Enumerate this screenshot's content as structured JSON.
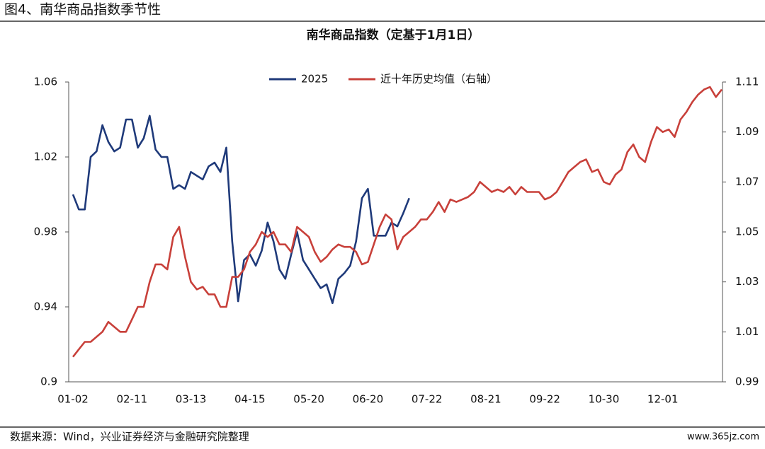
{
  "chart_data": {
    "type": "line",
    "figure_label": "图4、南华商品指数季节性",
    "title": "南华商品指数（定基于1月1日）",
    "source": "数据来源：Wind，兴业证券经济与金融研究院整理",
    "watermark": "www.365jz.com",
    "categories": [
      "01-02",
      null,
      null,
      null,
      null,
      null,
      null,
      null,
      null,
      null,
      "02-11",
      null,
      null,
      null,
      null,
      null,
      null,
      null,
      null,
      null,
      "03-13",
      null,
      null,
      null,
      null,
      null,
      null,
      null,
      null,
      null,
      "04-15",
      null,
      null,
      null,
      null,
      null,
      null,
      null,
      null,
      null,
      "05-20",
      null,
      null,
      null,
      null,
      null,
      null,
      null,
      null,
      null,
      "06-20",
      null,
      null,
      null,
      null,
      null,
      null,
      null,
      null,
      null,
      "07-22",
      null,
      null,
      null,
      null,
      null,
      null,
      null,
      null,
      null,
      "08-21",
      null,
      null,
      null,
      null,
      null,
      null,
      null,
      null,
      null,
      "09-22",
      null,
      null,
      null,
      null,
      null,
      null,
      null,
      null,
      null,
      "10-30",
      null,
      null,
      null,
      null,
      null,
      null,
      null,
      null,
      null,
      "12-01",
      null,
      null,
      null,
      null,
      null,
      null,
      null,
      null,
      null,
      null
    ],
    "series": [
      {
        "name": "2025",
        "color": "#1f3a7a",
        "values": [
          1.0,
          0.992,
          0.992,
          1.02,
          1.023,
          1.037,
          1.028,
          1.023,
          1.025,
          1.04,
          1.04,
          1.025,
          1.03,
          1.042,
          1.024,
          1.02,
          1.02,
          1.003,
          1.005,
          1.003,
          1.012,
          1.01,
          1.008,
          1.015,
          1.017,
          1.012,
          1.025,
          0.975,
          0.943,
          0.965,
          0.968,
          0.962,
          0.97,
          0.985,
          0.975,
          0.96,
          0.955,
          0.968,
          0.98,
          0.965,
          0.96,
          0.955,
          0.95,
          0.952,
          0.942,
          0.955,
          0.958,
          0.962,
          0.975,
          0.998,
          1.003,
          0.978,
          0.978,
          0.978,
          0.985,
          0.983,
          0.99,
          0.998,
          null,
          null,
          null,
          null,
          null,
          null,
          null,
          null,
          null,
          null,
          null,
          null,
          null,
          null,
          null,
          null,
          null,
          null,
          null,
          null,
          null,
          null,
          null,
          null,
          null,
          null,
          null,
          null,
          null,
          null,
          null,
          null,
          null,
          null,
          null,
          null,
          null,
          null,
          null,
          null,
          null,
          null,
          null,
          null,
          null,
          null,
          null,
          null,
          null,
          null,
          null,
          null,
          null
        ]
      },
      {
        "name": "近十年历史均值（右轴）",
        "color": "#c8403a",
        "axis": "y2",
        "values": [
          1.0,
          1.003,
          1.006,
          1.006,
          1.008,
          1.01,
          1.014,
          1.012,
          1.01,
          1.01,
          1.015,
          1.02,
          1.02,
          1.03,
          1.037,
          1.037,
          1.035,
          1.048,
          1.052,
          1.04,
          1.03,
          1.027,
          1.028,
          1.025,
          1.025,
          1.02,
          1.02,
          1.032,
          1.032,
          1.035,
          1.042,
          1.045,
          1.05,
          1.048,
          1.05,
          1.045,
          1.045,
          1.042,
          1.052,
          1.05,
          1.048,
          1.042,
          1.038,
          1.04,
          1.043,
          1.045,
          1.044,
          1.044,
          1.042,
          1.037,
          1.038,
          1.045,
          1.052,
          1.057,
          1.055,
          1.043,
          1.048,
          1.05,
          1.052,
          1.055,
          1.055,
          1.058,
          1.062,
          1.058,
          1.063,
          1.062,
          1.063,
          1.064,
          1.066,
          1.07,
          1.068,
          1.066,
          1.067,
          1.066,
          1.068,
          1.065,
          1.068,
          1.066,
          1.066,
          1.066,
          1.063,
          1.064,
          1.066,
          1.07,
          1.074,
          1.076,
          1.078,
          1.079,
          1.074,
          1.075,
          1.07,
          1.069,
          1.073,
          1.075,
          1.082,
          1.085,
          1.08,
          1.078,
          1.086,
          1.092,
          1.09,
          1.091,
          1.088,
          1.095,
          1.098,
          1.102,
          1.105,
          1.107,
          1.108,
          1.104,
          1.107
        ]
      }
    ],
    "ylim": [
      0.9,
      1.06
    ],
    "yticks": [
      0.9,
      0.94,
      0.98,
      1.02,
      1.06
    ],
    "y2lim": [
      0.99,
      1.11
    ],
    "y2ticks": [
      0.99,
      1.01,
      1.03,
      1.05,
      1.07,
      1.09,
      1.11
    ],
    "grid": false
  }
}
